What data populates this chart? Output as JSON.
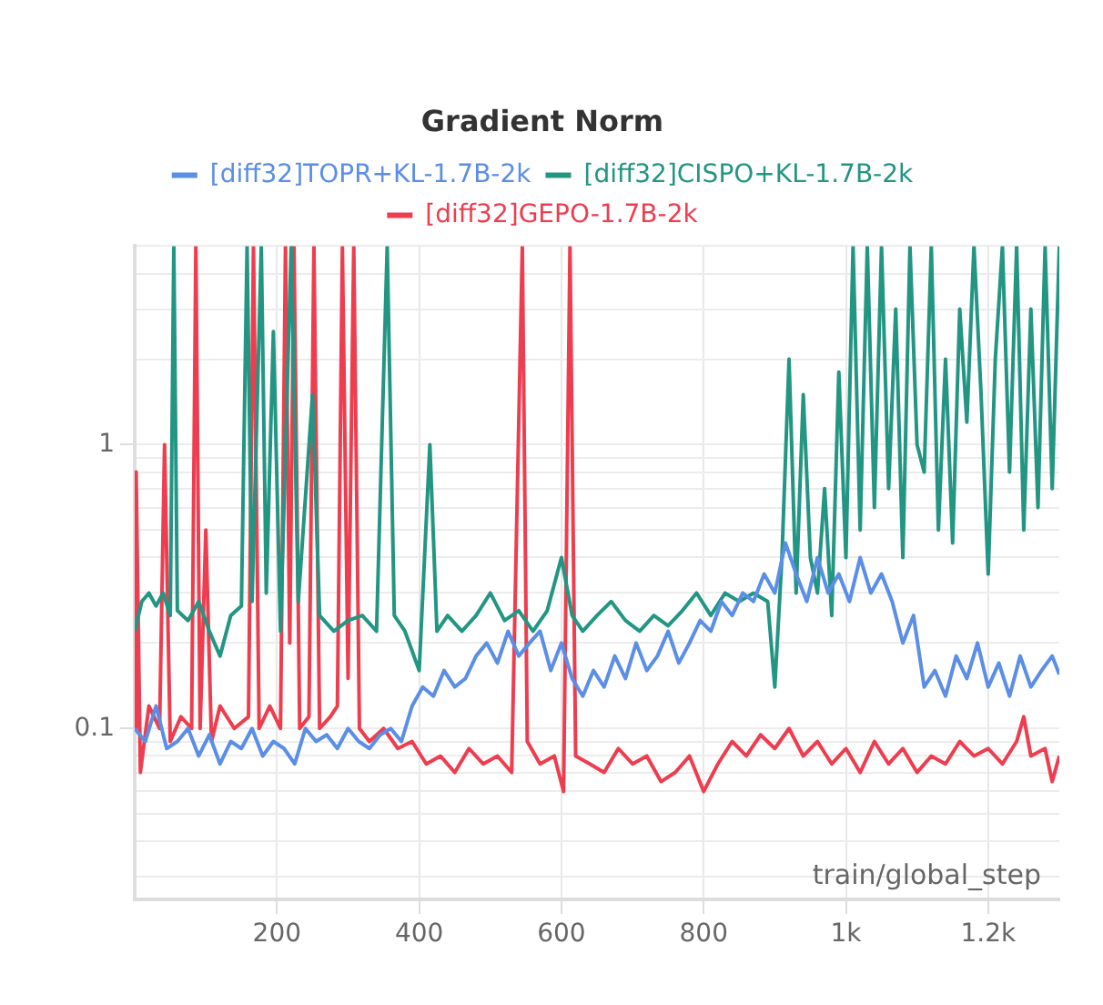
{
  "chart_data": {
    "type": "line",
    "title": "Gradient Norm",
    "xlabel": "train/global_step",
    "log": "y",
    "grid": true,
    "legend": "top",
    "xlim": [
      0,
      1300
    ],
    "xticks": [
      200,
      400,
      600,
      800,
      {
        "value": 1000,
        "label": "1k"
      },
      {
        "value": 1200,
        "label": "1.2k"
      }
    ],
    "ylim": [
      0.025,
      5
    ],
    "yticks": [
      {
        "value": 0.03,
        "label": null
      },
      {
        "value": 0.04,
        "label": null
      },
      {
        "value": 0.05,
        "label": null
      },
      {
        "value": 0.06,
        "label": null
      },
      {
        "value": 0.07,
        "label": null
      },
      {
        "value": 0.08,
        "label": null
      },
      {
        "value": 0.09,
        "label": null
      },
      0.1,
      {
        "value": 0.2,
        "label": null
      },
      {
        "value": 0.3,
        "label": null
      },
      {
        "value": 0.4,
        "label": null
      },
      {
        "value": 0.5,
        "label": null
      },
      {
        "value": 0.6,
        "label": null
      },
      {
        "value": 0.7,
        "label": null
      },
      {
        "value": 0.8,
        "label": null
      },
      {
        "value": 0.9,
        "label": null
      },
      1,
      {
        "value": 2,
        "label": null
      },
      {
        "value": 3,
        "label": null
      },
      {
        "value": 4,
        "label": null
      },
      {
        "value": 5,
        "label": null
      }
    ],
    "series": [
      {
        "name": "[diff32]TOPR+KL-1.7B-2k",
        "color": "#5b8ee6",
        "x": [
          0,
          15,
          30,
          45,
          60,
          75,
          90,
          105,
          120,
          135,
          150,
          165,
          180,
          195,
          210,
          225,
          240,
          255,
          270,
          285,
          300,
          315,
          330,
          345,
          360,
          375,
          390,
          405,
          420,
          435,
          450,
          465,
          480,
          495,
          510,
          525,
          540,
          555,
          570,
          585,
          600,
          615,
          630,
          645,
          660,
          675,
          690,
          705,
          720,
          735,
          750,
          765,
          780,
          795,
          810,
          825,
          840,
          855,
          870,
          885,
          900,
          915,
          930,
          945,
          960,
          975,
          990,
          1005,
          1020,
          1035,
          1050,
          1065,
          1080,
          1095,
          1110,
          1125,
          1140,
          1155,
          1170,
          1185,
          1200,
          1215,
          1230,
          1245,
          1260,
          1275,
          1290,
          1300
        ],
        "values": [
          0.1,
          0.09,
          0.12,
          0.085,
          0.09,
          0.1,
          0.08,
          0.095,
          0.075,
          0.09,
          0.085,
          0.1,
          0.08,
          0.09,
          0.085,
          0.075,
          0.1,
          0.09,
          0.095,
          0.085,
          0.1,
          0.09,
          0.085,
          0.095,
          0.1,
          0.09,
          0.12,
          0.14,
          0.13,
          0.16,
          0.14,
          0.15,
          0.18,
          0.2,
          0.17,
          0.22,
          0.18,
          0.2,
          0.22,
          0.16,
          0.2,
          0.15,
          0.13,
          0.16,
          0.14,
          0.18,
          0.15,
          0.2,
          0.16,
          0.18,
          0.22,
          0.17,
          0.2,
          0.24,
          0.22,
          0.28,
          0.25,
          0.3,
          0.28,
          0.35,
          0.3,
          0.45,
          0.35,
          0.28,
          0.4,
          0.3,
          0.35,
          0.28,
          0.4,
          0.3,
          0.35,
          0.28,
          0.2,
          0.25,
          0.14,
          0.16,
          0.13,
          0.18,
          0.15,
          0.2,
          0.14,
          0.17,
          0.13,
          0.18,
          0.14,
          0.16,
          0.18,
          0.155
        ]
      },
      {
        "name": "[diff32]CISPO+KL-1.7B-2k",
        "color": "#229683",
        "x": [
          0,
          10,
          20,
          30,
          40,
          50,
          55,
          60,
          75,
          90,
          105,
          120,
          135,
          150,
          158,
          165,
          178,
          185,
          195,
          205,
          220,
          230,
          250,
          260,
          280,
          300,
          320,
          340,
          355,
          365,
          380,
          400,
          415,
          425,
          440,
          460,
          480,
          500,
          520,
          540,
          560,
          580,
          600,
          615,
          630,
          650,
          670,
          690,
          710,
          730,
          750,
          770,
          790,
          810,
          830,
          850,
          870,
          890,
          900,
          910,
          920,
          930,
          940,
          950,
          960,
          970,
          980,
          990,
          1000,
          1010,
          1020,
          1030,
          1040,
          1050,
          1060,
          1070,
          1080,
          1090,
          1100,
          1110,
          1120,
          1130,
          1140,
          1150,
          1160,
          1170,
          1180,
          1190,
          1200,
          1210,
          1220,
          1230,
          1240,
          1250,
          1260,
          1270,
          1280,
          1290,
          1300
        ],
        "values": [
          0.22,
          0.28,
          0.3,
          0.27,
          0.3,
          0.25,
          5,
          0.26,
          0.24,
          0.28,
          0.22,
          0.18,
          0.25,
          0.27,
          5,
          0.28,
          5,
          0.3,
          2.5,
          0.22,
          5,
          0.28,
          1.5,
          0.25,
          0.22,
          0.24,
          0.25,
          0.22,
          5,
          0.25,
          0.22,
          0.16,
          1.0,
          0.22,
          0.25,
          0.22,
          0.25,
          0.3,
          0.24,
          0.26,
          0.22,
          0.26,
          0.4,
          0.25,
          0.22,
          0.25,
          0.28,
          0.24,
          0.22,
          0.25,
          0.23,
          0.26,
          0.3,
          0.25,
          0.3,
          0.28,
          0.3,
          0.28,
          0.14,
          0.4,
          2.0,
          0.3,
          1.5,
          0.4,
          0.3,
          0.7,
          0.25,
          1.8,
          0.4,
          5,
          0.5,
          5,
          0.6,
          5,
          0.7,
          3,
          0.4,
          5,
          1.0,
          0.8,
          5,
          0.5,
          2,
          0.45,
          3,
          1.2,
          5,
          1.5,
          0.35,
          2,
          5,
          0.8,
          5,
          0.5,
          3,
          0.6,
          5,
          0.7,
          5
        ]
      },
      {
        "name": "[diff32]GEPO-1.7B-2k",
        "color": "#ee3d4f",
        "x": [
          0,
          2,
          8,
          20,
          35,
          42,
          50,
          65,
          80,
          86,
          92,
          100,
          108,
          120,
          140,
          160,
          167,
          175,
          190,
          205,
          212,
          218,
          224,
          232,
          245,
          252,
          260,
          275,
          285,
          292,
          300,
          308,
          316,
          330,
          350,
          370,
          390,
          410,
          430,
          450,
          470,
          490,
          510,
          530,
          545,
          552,
          570,
          590,
          603,
          612,
          620,
          640,
          660,
          680,
          700,
          720,
          740,
          760,
          780,
          800,
          820,
          840,
          860,
          880,
          900,
          920,
          940,
          960,
          980,
          1000,
          1020,
          1040,
          1060,
          1080,
          1100,
          1120,
          1140,
          1160,
          1180,
          1200,
          1220,
          1240,
          1250,
          1260,
          1280,
          1290,
          1300
        ],
        "values": [
          0.1,
          0.8,
          0.07,
          0.12,
          0.1,
          1.0,
          0.09,
          0.11,
          0.1,
          5,
          0.1,
          0.5,
          0.09,
          0.12,
          0.1,
          0.11,
          5,
          0.1,
          0.12,
          0.1,
          5,
          0.2,
          5,
          0.1,
          0.11,
          5,
          0.1,
          0.11,
          0.12,
          5,
          0.15,
          5,
          0.1,
          0.09,
          0.1,
          0.085,
          0.09,
          0.075,
          0.08,
          0.07,
          0.085,
          0.075,
          0.08,
          0.07,
          5,
          0.09,
          0.075,
          0.08,
          0.06,
          5,
          0.08,
          0.075,
          0.07,
          0.085,
          0.075,
          0.08,
          0.065,
          0.07,
          0.08,
          0.06,
          0.075,
          0.09,
          0.08,
          0.095,
          0.085,
          0.1,
          0.08,
          0.09,
          0.075,
          0.085,
          0.07,
          0.09,
          0.075,
          0.085,
          0.07,
          0.08,
          0.075,
          0.09,
          0.08,
          0.085,
          0.075,
          0.09,
          0.11,
          0.08,
          0.085,
          0.065,
          0.08
        ]
      }
    ]
  }
}
